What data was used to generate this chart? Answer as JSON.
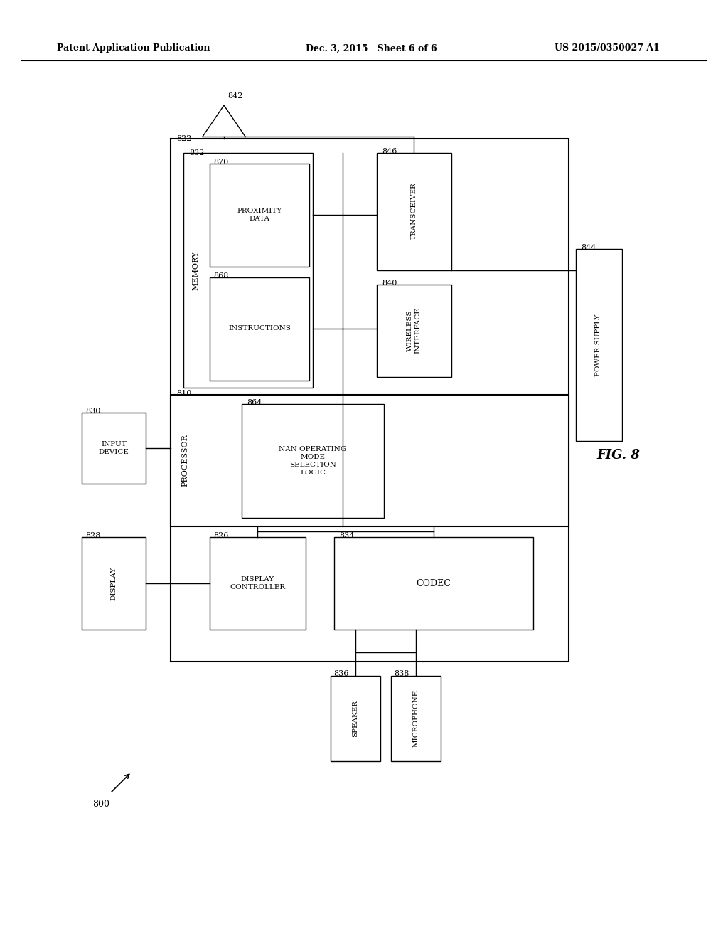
{
  "bg_color": "#ffffff",
  "header_left": "Patent Application Publication",
  "header_mid": "Dec. 3, 2015   Sheet 6 of 6",
  "header_right": "US 2015/0350027 A1",
  "fig_label": "FIG. 8",
  "diagram_label": "800",
  "lw": 1.0
}
